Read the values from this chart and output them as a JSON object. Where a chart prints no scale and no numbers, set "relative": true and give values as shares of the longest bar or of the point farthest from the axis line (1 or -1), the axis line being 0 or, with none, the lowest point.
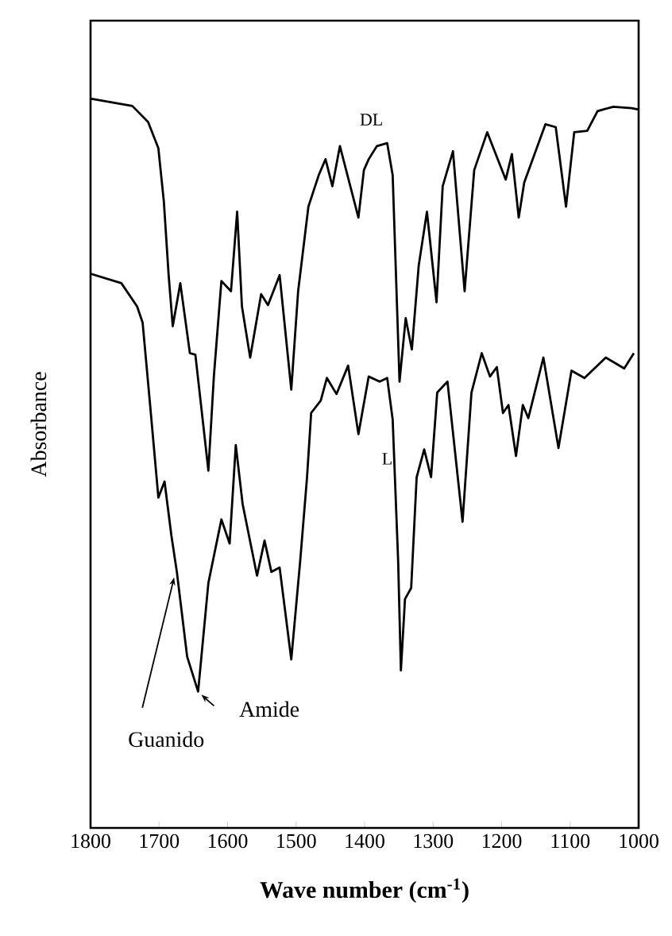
{
  "chart_data": {
    "type": "line",
    "relative": true,
    "xlabel": "**Wave number (cm$^{-1}$)**",
    "ylabel": "Absorbance",
    "xlim": [
      1800,
      1000
    ],
    "xticks": [
      1800,
      1700,
      1600,
      1500,
      1400,
      1300,
      1200,
      1100,
      1000
    ],
    "series": [
      {
        "name": "DL",
        "color": "#000000",
        "x": [
          1800,
          1739,
          1716,
          1701,
          1693,
          1686,
          1680,
          1669,
          1662,
          1655,
          1647,
          1628,
          1620,
          1609,
          1595,
          1586,
          1579,
          1567,
          1551,
          1541,
          1524,
          1507,
          1497,
          1482,
          1467,
          1457,
          1447,
          1436,
          1409,
          1401,
          1394,
          1382,
          1367,
          1359,
          1349,
          1340,
          1331,
          1321,
          1309,
          1295,
          1286,
          1271,
          1254,
          1240,
          1221,
          1194,
          1185,
          1175,
          1167,
          1136,
          1121,
          1106,
          1094,
          1075,
          1060,
          1037,
          1010,
          1000
        ],
        "values": [
          1.0,
          0.99,
          0.968,
          0.932,
          0.859,
          0.758,
          0.688,
          0.747,
          0.699,
          0.651,
          0.649,
          0.49,
          0.619,
          0.75,
          0.736,
          0.845,
          0.715,
          0.645,
          0.732,
          0.717,
          0.758,
          0.601,
          0.736,
          0.852,
          0.895,
          0.917,
          0.88,
          0.935,
          0.837,
          0.902,
          0.917,
          0.935,
          0.939,
          0.895,
          0.612,
          0.699,
          0.656,
          0.771,
          0.845,
          0.721,
          0.88,
          0.928,
          0.736,
          0.902,
          0.954,
          0.889,
          0.924,
          0.837,
          0.885,
          0.965,
          0.961,
          0.852,
          0.954,
          0.956,
          0.983,
          0.989,
          0.987,
          0.985
        ]
      },
      {
        "name": "L",
        "color": "#000000",
        "x": [
          1800,
          1755,
          1732,
          1724,
          1712,
          1701,
          1692,
          1682,
          1674,
          1659,
          1643,
          1628,
          1609,
          1597,
          1588,
          1578,
          1557,
          1546,
          1536,
          1524,
          1507,
          1494,
          1484,
          1478,
          1464,
          1455,
          1441,
          1424,
          1409,
          1394,
          1378,
          1367,
          1359,
          1351,
          1347,
          1341,
          1332,
          1324,
          1313,
          1303,
          1294,
          1279,
          1257,
          1244,
          1229,
          1217,
          1207,
          1198,
          1190,
          1179,
          1169,
          1161,
          1139,
          1117,
          1098,
          1079,
          1048,
          1021,
          1007
        ],
        "values": [
          0.76,
          0.747,
          0.715,
          0.693,
          0.569,
          0.453,
          0.475,
          0.401,
          0.351,
          0.235,
          0.187,
          0.336,
          0.423,
          0.39,
          0.525,
          0.444,
          0.346,
          0.394,
          0.351,
          0.357,
          0.231,
          0.366,
          0.481,
          0.569,
          0.586,
          0.617,
          0.595,
          0.634,
          0.54,
          0.619,
          0.612,
          0.617,
          0.56,
          0.366,
          0.216,
          0.314,
          0.329,
          0.481,
          0.519,
          0.481,
          0.597,
          0.612,
          0.42,
          0.597,
          0.651,
          0.619,
          0.632,
          0.569,
          0.58,
          0.51,
          0.58,
          0.562,
          0.645,
          0.521,
          0.627,
          0.617,
          0.645,
          0.63,
          0.651
        ]
      }
    ],
    "annotations": [
      {
        "text": "Amide",
        "x": 1643,
        "y": 0.187
      },
      {
        "text": "Guanido",
        "x": 1678,
        "y": 0.35
      }
    ]
  }
}
